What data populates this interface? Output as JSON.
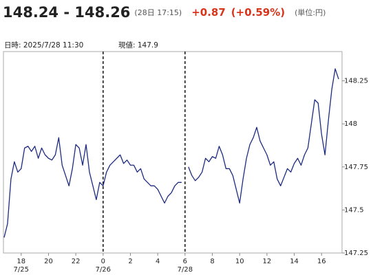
{
  "header": {
    "bid_ask": "148.24 - 148.26",
    "time": "(28日 17:15)",
    "change": "+0.87",
    "change_pct": "(+0.59%)",
    "unit": "(単位:円)"
  },
  "info": {
    "datetime_label": "日時: 2025/7/28  11:30",
    "current_label": "現値: 147.9"
  },
  "chart_data": {
    "type": "line",
    "x": [
      16.75,
      17,
      17.25,
      17.5,
      17.75,
      18,
      18.25,
      18.5,
      18.75,
      19,
      19.25,
      19.5,
      19.75,
      20,
      20.25,
      20.5,
      20.75,
      21,
      21.25,
      21.5,
      21.75,
      22,
      22.25,
      22.5,
      22.75,
      23,
      23.25,
      23.5,
      23.75,
      24,
      24.25,
      24.5,
      24.75,
      25,
      25.25,
      25.5,
      25.75,
      26,
      26.25,
      26.5,
      26.75,
      27,
      27.25,
      27.5,
      27.75,
      28,
      28.25,
      28.5,
      28.75,
      29,
      29.25,
      29.5,
      29.75,
      30,
      30.25,
      30.5,
      30.75,
      31,
      31.25,
      31.5,
      31.75,
      32,
      32.25,
      32.5,
      32.75,
      33,
      33.25,
      33.5,
      33.75,
      34,
      34.25,
      34.5,
      34.75,
      35,
      35.25,
      35.5,
      35.75,
      36,
      36.25,
      36.5,
      36.75,
      37,
      37.25,
      37.5,
      37.75,
      38,
      38.25,
      38.5,
      38.75,
      39,
      39.25,
      39.5,
      39.75,
      40,
      40.25,
      40.5,
      40.75,
      41,
      41.25
    ],
    "series": [
      {
        "color": "#1c2a80",
        "values": [
          147.34,
          147.42,
          147.68,
          147.78,
          147.72,
          147.74,
          147.86,
          147.87,
          147.84,
          147.87,
          147.8,
          147.86,
          147.82,
          147.8,
          147.79,
          147.82,
          147.92,
          147.76,
          147.7,
          147.64,
          147.74,
          147.88,
          147.86,
          147.76,
          147.88,
          147.72,
          147.64,
          147.56,
          147.66,
          147.64,
          147.72,
          147.76,
          147.78,
          147.8,
          147.82,
          147.77,
          147.79,
          147.76,
          147.76,
          147.72,
          147.74,
          147.68,
          147.66,
          147.64,
          147.64,
          147.62,
          147.58,
          147.54,
          147.58,
          147.6,
          147.64,
          147.66,
          147.66,
          null,
          147.75,
          147.7,
          147.67,
          147.69,
          147.72,
          147.8,
          147.78,
          147.81,
          147.8,
          147.87,
          147.82,
          147.74,
          147.74,
          147.7,
          147.62,
          147.54,
          147.68,
          147.8,
          147.88,
          147.92,
          147.98,
          147.9,
          147.86,
          147.82,
          147.76,
          147.78,
          147.68,
          147.64,
          147.69,
          147.74,
          147.72,
          147.77,
          147.8,
          147.76,
          147.82,
          147.86,
          148.0,
          148.14,
          148.12,
          147.94,
          147.82,
          148.02,
          148.2,
          148.32,
          148.26
        ]
      }
    ],
    "xlim": [
      16.7,
      41.5
    ],
    "ylim": [
      147.25,
      148.42
    ],
    "yticks": [
      147.25,
      147.5,
      147.75,
      148,
      148.25
    ],
    "xticks": [
      {
        "value": 18,
        "label": "18"
      },
      {
        "value": 20,
        "label": "20"
      },
      {
        "value": 22,
        "label": "22"
      },
      {
        "value": 24,
        "label": "0"
      },
      {
        "value": 26,
        "label": "2"
      },
      {
        "value": 28,
        "label": "4"
      },
      {
        "value": 30,
        "label": "6"
      },
      {
        "value": 32,
        "label": "8"
      },
      {
        "value": 34,
        "label": "10"
      },
      {
        "value": 36,
        "label": "12"
      },
      {
        "value": 38,
        "label": "14"
      },
      {
        "value": 40,
        "label": "16"
      }
    ],
    "date_labels": [
      {
        "value": 18,
        "label": "7/25"
      },
      {
        "value": 24,
        "label": "7/26"
      },
      {
        "value": 30,
        "label": "7/28"
      }
    ],
    "separators": [
      24,
      30
    ],
    "grid": false
  }
}
